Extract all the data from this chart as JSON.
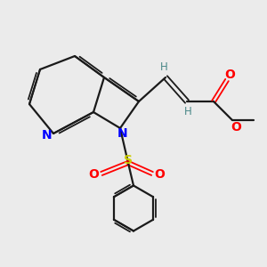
{
  "background_color": "#ebebeb",
  "bond_color": "#1a1a1a",
  "N_color": "#0000ff",
  "O_color": "#ff0000",
  "S_color": "#cccc00",
  "H_color": "#4a8888",
  "figsize": [
    3.0,
    3.0
  ],
  "dpi": 100,
  "xlim": [
    0,
    10
  ],
  "ylim": [
    0,
    10
  ]
}
